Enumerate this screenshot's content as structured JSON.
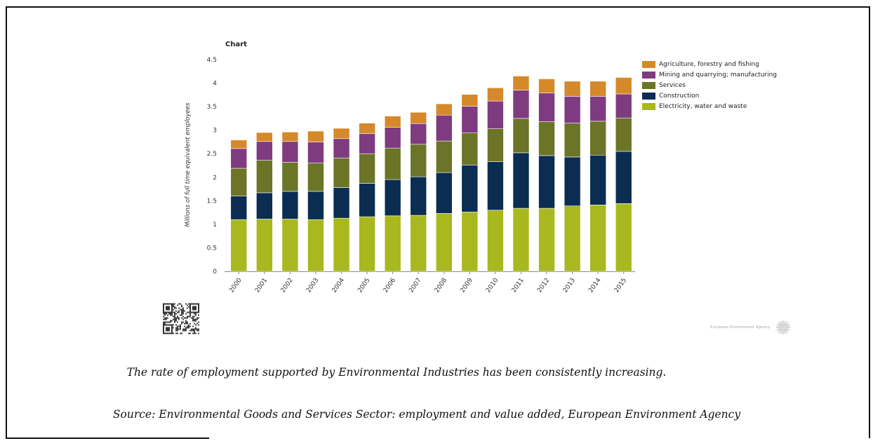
{
  "chart_data": {
    "type": "bar",
    "stacked": true,
    "title": "Chart",
    "ylabel": "Millions of full time equivalent employees",
    "xlabel": "",
    "ylim": [
      0,
      4.5
    ],
    "yticks": [
      "0",
      "0.5",
      "1",
      "1.5",
      "2",
      "2.5",
      "3",
      "3.5",
      "4",
      "4.5"
    ],
    "categories": [
      "2000",
      "2001",
      "2002",
      "2003",
      "2004",
      "2005",
      "2006",
      "2007",
      "2008",
      "2009",
      "2010",
      "2011",
      "2012",
      "2013",
      "2014",
      "2015"
    ],
    "legend_position": "right",
    "series": [
      {
        "name": "Electricity, water and waste",
        "color": "#a8b81e",
        "values": [
          1.1,
          1.11,
          1.11,
          1.1,
          1.13,
          1.16,
          1.18,
          1.19,
          1.23,
          1.26,
          1.3,
          1.34,
          1.34,
          1.39,
          1.41,
          1.44
        ]
      },
      {
        "name": "Construction",
        "color": "#0b2d52",
        "values": [
          0.5,
          0.56,
          0.59,
          0.6,
          0.65,
          0.71,
          0.77,
          0.82,
          0.87,
          1.0,
          1.03,
          1.18,
          1.12,
          1.04,
          1.06,
          1.11
        ]
      },
      {
        "name": "Services",
        "color": "#6b7427",
        "values": [
          0.59,
          0.69,
          0.62,
          0.6,
          0.63,
          0.63,
          0.67,
          0.69,
          0.67,
          0.68,
          0.7,
          0.73,
          0.72,
          0.72,
          0.72,
          0.71
        ]
      },
      {
        "name": "Mining and quarrying; manufacturing",
        "color": "#7f3b80",
        "values": [
          0.42,
          0.4,
          0.44,
          0.45,
          0.41,
          0.43,
          0.44,
          0.44,
          0.55,
          0.57,
          0.59,
          0.6,
          0.61,
          0.57,
          0.53,
          0.51
        ]
      },
      {
        "name": "Agriculture, forestry and fishing",
        "color": "#d5892a",
        "values": [
          0.18,
          0.19,
          0.2,
          0.23,
          0.22,
          0.22,
          0.24,
          0.24,
          0.24,
          0.25,
          0.28,
          0.3,
          0.3,
          0.32,
          0.32,
          0.35
        ]
      }
    ]
  },
  "logo": {
    "text": "European Environment Agency"
  },
  "captions": {
    "summary": "The rate of employment supported by Environmental Industries has been consistently increasing.",
    "source": "Source: Environmental Goods and Services Sector: employment and value added, European Environment Agency"
  }
}
